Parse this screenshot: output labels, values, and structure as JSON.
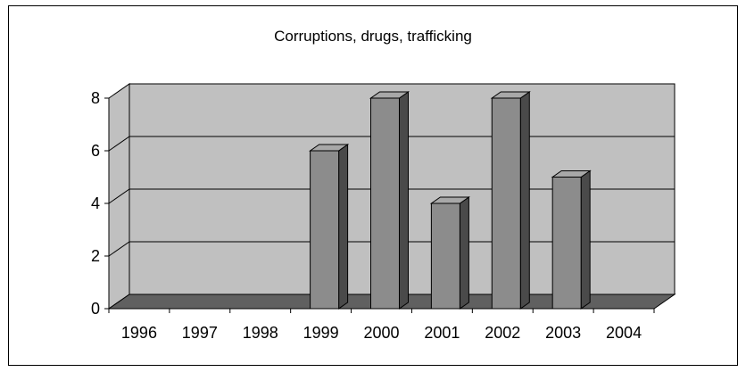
{
  "chart_data": {
    "type": "bar",
    "title": "Corruptions, drugs, trafficking",
    "xlabel": "",
    "ylabel": "",
    "categories": [
      "1996",
      "1997",
      "1998",
      "1999",
      "2000",
      "2001",
      "2002",
      "2003",
      "2004"
    ],
    "values": [
      0,
      0,
      0,
      6,
      8,
      4,
      8,
      5,
      0
    ],
    "ylim": [
      0,
      8
    ],
    "yticks": [
      "0",
      "2",
      "4",
      "6",
      "8"
    ],
    "grid": true,
    "legend": "none",
    "style": "3d-column",
    "colors": {
      "bar_front": "#8c8c8c",
      "bar_top": "#a8a8a8",
      "bar_side": "#4a4a4a",
      "wall": "#c0c0c0",
      "floor": "#606060"
    }
  }
}
